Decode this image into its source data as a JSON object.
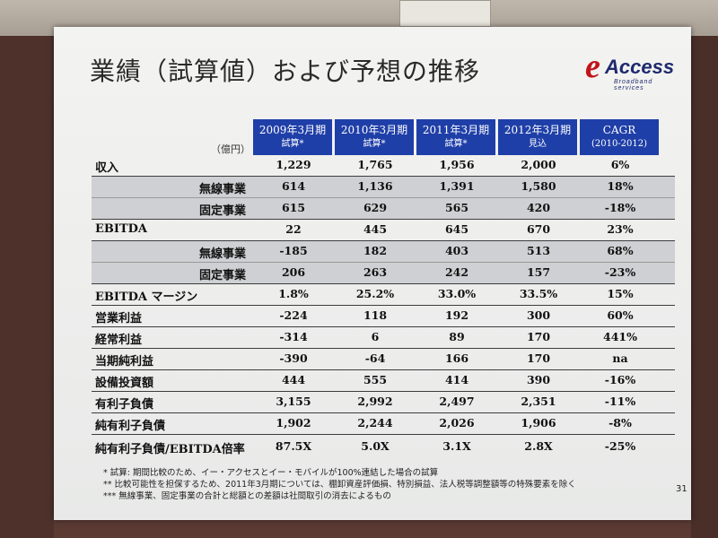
{
  "slide": {
    "title": "業績（試算値）および予想の推移",
    "unit": "（億円）",
    "page_number": "31"
  },
  "logo": {
    "letter": "e",
    "name": "Access",
    "tagline": "Broadband services"
  },
  "columns": [
    {
      "line1": "2009年3月期",
      "line2": "試算*"
    },
    {
      "line1": "2010年3月期",
      "line2": "試算*"
    },
    {
      "line1": "2011年3月期",
      "line2": "試算*"
    },
    {
      "line1": "2012年3月期",
      "line2": "見込"
    },
    {
      "line1": "CAGR",
      "line2": "(2010-2012)"
    }
  ],
  "rows": [
    {
      "label": "収入",
      "values": [
        "1,229",
        "1,765",
        "1,956",
        "2,000",
        "6%"
      ]
    },
    {
      "label": "無線事業",
      "values": [
        "614",
        "1,136",
        "1,391",
        "1,580",
        "18%"
      ]
    },
    {
      "label": "固定事業",
      "values": [
        "615",
        "629",
        "565",
        "420",
        "-18%"
      ]
    },
    {
      "label": "EBITDA",
      "values": [
        "22",
        "445",
        "645",
        "670",
        "23%"
      ]
    },
    {
      "label": "無線事業",
      "values": [
        "-185",
        "182",
        "403",
        "513",
        "68%"
      ]
    },
    {
      "label": "固定事業",
      "values": [
        "206",
        "263",
        "242",
        "157",
        "-23%"
      ]
    },
    {
      "label": "EBITDA マージン",
      "values": [
        "1.8%",
        "25.2%",
        "33.0%",
        "33.5%",
        "15%"
      ]
    },
    {
      "label": "営業利益",
      "values": [
        "-224",
        "118",
        "192",
        "300",
        "60%"
      ]
    },
    {
      "label": "経常利益",
      "values": [
        "-314",
        "6",
        "89",
        "170",
        "441%"
      ]
    },
    {
      "label": "当期純利益",
      "values": [
        "-390",
        "-64",
        "166",
        "170",
        "na"
      ]
    },
    {
      "label": "設備投資額",
      "values": [
        "444",
        "555",
        "414",
        "390",
        "-16%"
      ]
    },
    {
      "label": "有利子負債",
      "values": [
        "3,155",
        "2,992",
        "2,497",
        "2,351",
        "-11%"
      ]
    },
    {
      "label": "純有利子負債",
      "values": [
        "1,902",
        "2,244",
        "2,026",
        "1,906",
        "-8%"
      ]
    },
    {
      "label": "純有利子負債/EBITDA倍率",
      "values": [
        "87.5X",
        "5.0X",
        "3.1X",
        "2.8X",
        "-25%"
      ]
    }
  ],
  "notes": [
    "* 試算: 期間比較のため、イー・アクセスとイー・モバイルが100%連結した場合の試算",
    "** 比較可能性を担保するため、2011年3月期については、棚卸資産評価損、特別損益、法人税等調整額等の特殊要素を除く",
    "*** 無線事業、固定事業の合計と総額との差額は社間取引の消去によるもの"
  ],
  "colors": {
    "header_bg": "#1f3fa8",
    "logo_red": "#c0141b",
    "logo_navy": "#1e2a6e"
  }
}
